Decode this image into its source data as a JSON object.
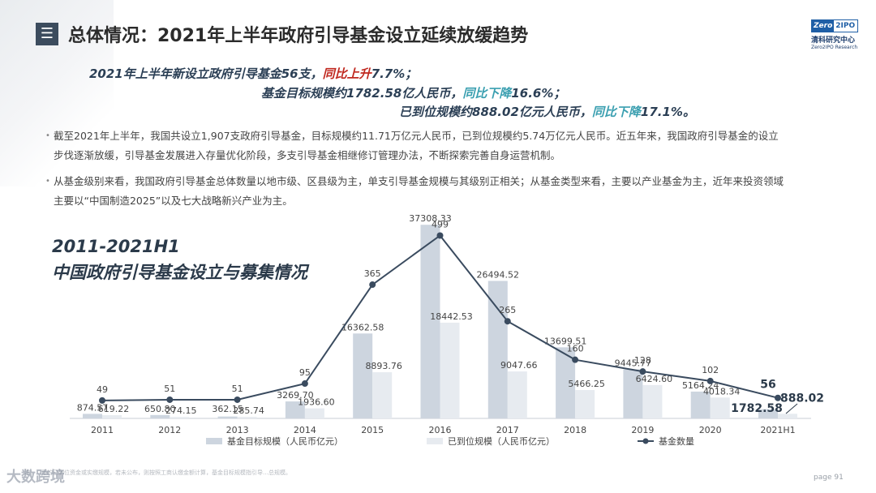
{
  "header": {
    "icon_glyph": "☰",
    "icon_name": "menu-icon",
    "title": "总体情况：2021年上半年政府引导基金设立延续放缓趋势",
    "logo": {
      "mark_a": "Zero",
      "mark_b": "2IPO",
      "cn": "清科研究中心",
      "en": "Zero2IPO Research"
    }
  },
  "highlights": {
    "line1": {
      "a": "2021年上半年新设立政府引导基金56支，",
      "b": "同比上升",
      "c": "7.7%；"
    },
    "line2": {
      "a": "基金目标规模约1782.58亿人民币，",
      "b": "同比下降",
      "c": "16.6%；"
    },
    "line3": {
      "a": "已到位规模约888.02亿元人民币，",
      "b": "同比下降",
      "c": "17.1%。"
    }
  },
  "bullets": [
    "截至2021年上半年，我国共设立1,907支政府引导基金，目标规模约11.71万亿元人民币，已到位规模约5.74万亿元人民币。近五年来，我国政府引导基金的设立步伐逐渐放缓，引导基金发展进入存量优化阶段，多支引导基金相继修订管理办法，不断探索完善自身运营机制。",
    "从基金级别来看，我国政府引导基金总体数量以地市级、区县级为主，单支引导基金规模与其级别正相关；从基金类型来看，主要以产业基金为主，近年来投资领域主要以“中国制造2025”以及七大战略新兴产业为主。"
  ],
  "chart_title_line1": "2011-2021H1",
  "chart_title_line2": "中国政府引导基金设立与募集情况",
  "chart_data": {
    "type": "bar",
    "categories": [
      "2011",
      "2012",
      "2013",
      "2014",
      "2015",
      "2016",
      "2017",
      "2018",
      "2019",
      "2020",
      "2021H1"
    ],
    "series": [
      {
        "name": "基金目标规模（人民币亿元）",
        "kind": "bar",
        "color": "#cdd5df",
        "values": [
          874.57,
          650.8,
          362.15,
          3269.7,
          16362.58,
          37308.33,
          26494.52,
          13699.51,
          9445.77,
          5164.24,
          1782.58
        ]
      },
      {
        "name": "已到位规模（人民币亿元）",
        "kind": "bar",
        "color": "#e7ebf0",
        "values": [
          619.22,
          274.15,
          285.74,
          1936.6,
          8893.76,
          18442.53,
          9047.66,
          5466.25,
          6424.6,
          4018.34,
          888.02
        ]
      },
      {
        "name": "基金数量",
        "kind": "line",
        "color": "#3a4b5f",
        "values": [
          49,
          51,
          51,
          95,
          365,
          499,
          265,
          160,
          128,
          102,
          56
        ]
      }
    ],
    "bar_ylim": [
      0,
      40000
    ],
    "line_ylim": [
      0,
      500
    ],
    "last_point_labels": {
      "count": "56",
      "target": "1782.58",
      "paid": "888.02"
    }
  },
  "footnote": "注：…币的已到位资金或实缴规模，若未公布，则按照工商认缴金额计算，基金目标规模指引导…总规模。",
  "watermark": "大数跨境",
  "page_label": "page 91"
}
